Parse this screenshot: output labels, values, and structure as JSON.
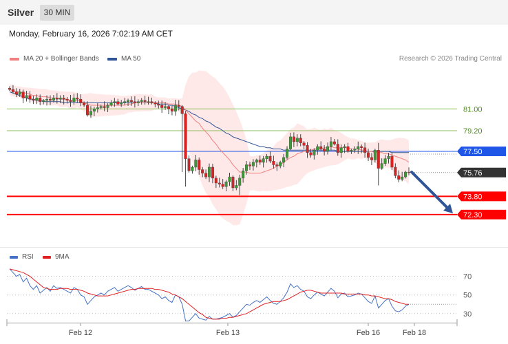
{
  "header": {
    "instrument": "Silver",
    "timeframe": "30 MIN"
  },
  "datetime": "Monday, February 16, 2026 7:02:19 AM CET",
  "legend": {
    "items": [
      {
        "label": "MA 20 + Bollinger Bands",
        "color": "#f08080"
      },
      {
        "label": "MA 50",
        "color": "#2f5597"
      }
    ],
    "copyright": "Research © 2026 Trading Central"
  },
  "rsi_legend": {
    "items": [
      {
        "label": "RSI",
        "color": "#4472c4"
      },
      {
        "label": "9MA",
        "color": "#e02020"
      }
    ]
  },
  "chart_data": [
    {
      "type": "candlestick",
      "x_labels": [
        "Feb 12",
        "Feb 13",
        "Feb 16",
        "Feb 18"
      ],
      "y_range": [
        69.8,
        84.3
      ],
      "last_price": 75.76,
      "levels": [
        {
          "value": 81.0,
          "label": "81.00",
          "color": "#8fbf5a",
          "kind": "resistance"
        },
        {
          "value": 79.2,
          "label": "79.20",
          "color": "#8fbf5a",
          "kind": "resistance"
        },
        {
          "value": 77.5,
          "label": "77.50",
          "color": "#1f56e8",
          "kind": "pivot"
        },
        {
          "value": 73.8,
          "label": "73.80",
          "color": "#ff0000",
          "kind": "support"
        },
        {
          "value": 72.3,
          "label": "72.30",
          "color": "#ff0000",
          "kind": "support"
        }
      ],
      "arrow": {
        "from": 75.8,
        "to": 72.4,
        "color": "#2f5597"
      },
      "close_series": [
        82.6,
        82.4,
        82.2,
        82.4,
        81.9,
        82.1,
        81.8,
        81.7,
        81.9,
        81.6,
        81.7,
        81.8,
        81.7,
        81.9,
        81.8,
        81.9,
        81.8,
        81.7,
        81.6,
        81.9,
        81.8,
        81.5,
        81.3,
        80.5,
        80.8,
        81.0,
        81.1,
        81.2,
        81.1,
        81.3,
        81.5,
        81.6,
        81.4,
        81.5,
        81.6,
        81.7,
        81.6,
        81.5,
        81.6,
        81.7,
        81.6,
        81.6,
        81.5,
        81.4,
        81.3,
        81.1,
        81.2,
        81.0,
        80.8,
        81.3,
        81.2,
        80.6,
        76.9,
        75.9,
        76.2,
        76.8,
        76.0,
        75.7,
        75.4,
        76.2,
        75.3,
        74.9,
        74.8,
        74.6,
        75.0,
        75.4,
        74.5,
        74.7,
        75.3,
        75.9,
        76.4,
        76.3,
        76.6,
        76.8,
        76.6,
        76.9,
        77.1,
        76.7,
        76.4,
        76.3,
        76.6,
        77.0,
        77.7,
        78.7,
        78.3,
        78.6,
        78.2,
        78.0,
        77.4,
        77.2,
        77.6,
        77.9,
        77.7,
        77.5,
        77.9,
        78.3,
        78.1,
        77.4,
        77.8,
        77.9,
        77.5,
        77.6,
        77.7,
        77.9,
        77.8,
        77.4,
        77.0,
        76.8,
        77.6,
        76.1,
        76.5,
        76.9,
        77.1,
        76.2,
        75.5,
        75.2,
        75.4,
        75.8,
        75.76
      ],
      "ma20": [
        82.6,
        82.5,
        82.4,
        82.4,
        82.3,
        82.3,
        82.2,
        82.1,
        82.1,
        82.0,
        82.0,
        82.0,
        81.9,
        81.9,
        81.9,
        81.8,
        81.8,
        81.8,
        81.7,
        81.7,
        81.7,
        81.6,
        81.5,
        81.4,
        81.3,
        81.3,
        81.3,
        81.3,
        81.3,
        81.3,
        81.3,
        81.3,
        81.3,
        81.3,
        81.3,
        81.4,
        81.4,
        81.5,
        81.5,
        81.5,
        81.5,
        81.5,
        81.5,
        81.5,
        81.5,
        81.5,
        81.5,
        81.4,
        81.4,
        81.4,
        81.3,
        81.2,
        80.9,
        80.6,
        80.3,
        80.0,
        79.8,
        79.4,
        79.1,
        78.8,
        78.4,
        78.1,
        77.7,
        77.4,
        77.1,
        76.8,
        76.4,
        76.1,
        75.8,
        75.8,
        75.8,
        75.7,
        75.7,
        75.7,
        75.7,
        75.8,
        75.9,
        76.0,
        76.1,
        76.3,
        76.4,
        76.6,
        76.8,
        77.0,
        77.1,
        77.3,
        77.4,
        77.5,
        77.5,
        77.6,
        77.7,
        77.7,
        77.7,
        77.8,
        77.8,
        77.9,
        77.8,
        77.8,
        77.8,
        77.8,
        77.8,
        77.7,
        77.7,
        77.7,
        77.6,
        77.6,
        77.5,
        77.5,
        77.4,
        77.4,
        77.4,
        77.3,
        77.3,
        77.2,
        77.1,
        77.0,
        76.9,
        76.8,
        76.6
      ],
      "ma50": [
        82.4,
        82.3,
        82.2,
        82.1,
        82.0,
        81.9,
        81.8,
        81.8,
        81.7,
        81.7,
        81.6,
        81.6,
        81.6,
        81.6,
        81.6,
        81.6,
        81.5,
        81.5,
        81.5,
        81.5,
        81.5,
        81.5,
        81.5,
        81.5,
        81.5,
        81.5,
        81.5,
        81.5,
        81.5,
        81.5,
        81.5,
        81.5,
        81.5,
        81.5,
        81.5,
        81.5,
        81.5,
        81.5,
        81.5,
        81.5,
        81.5,
        81.5,
        81.5,
        81.5,
        81.4,
        81.4,
        81.4,
        81.3,
        81.3,
        81.2,
        81.1,
        81.0,
        80.9,
        80.8,
        80.6,
        80.5,
        80.3,
        80.2,
        80.0,
        79.9,
        79.7,
        79.5,
        79.4,
        79.2,
        79.0,
        78.9,
        78.7,
        78.6,
        78.5,
        78.4,
        78.3,
        78.2,
        78.1,
        78.0,
        77.9,
        77.9,
        77.8,
        77.8,
        77.7,
        77.7,
        77.7,
        77.6,
        77.6,
        77.6,
        77.6,
        77.6,
        77.6,
        77.6,
        77.6,
        77.6,
        77.6,
        77.6,
        77.6,
        77.6,
        77.6,
        77.6,
        77.6,
        77.5,
        77.5,
        77.5,
        77.5,
        77.5,
        77.5,
        77.5,
        77.5,
        77.5,
        77.5,
        77.5,
        77.5,
        77.5,
        77.5,
        77.5,
        77.5,
        77.4,
        77.4,
        77.4,
        77.4,
        77.4,
        77.4
      ]
    },
    {
      "type": "line",
      "name": "RSI",
      "y_range": [
        21,
        83
      ],
      "ticks": [
        70,
        50,
        30
      ],
      "series": [
        {
          "name": "RSI",
          "color": "#4472c4",
          "values": [
            78,
            74,
            70,
            72,
            64,
            68,
            60,
            56,
            60,
            52,
            55,
            58,
            54,
            60,
            57,
            58,
            56,
            54,
            52,
            58,
            56,
            50,
            48,
            40,
            44,
            48,
            50,
            52,
            50,
            54,
            56,
            58,
            54,
            56,
            58,
            60,
            58,
            55,
            57,
            59,
            56,
            56,
            54,
            52,
            50,
            46,
            48,
            44,
            42,
            50,
            48,
            40,
            22,
            22,
            26,
            30,
            25,
            24,
            23,
            27,
            24,
            24,
            25,
            26,
            28,
            30,
            26,
            28,
            32,
            36,
            40,
            39,
            42,
            44,
            42,
            45,
            48,
            44,
            41,
            40,
            43,
            47,
            53,
            62,
            58,
            60,
            56,
            54,
            48,
            46,
            50,
            53,
            51,
            49,
            53,
            57,
            54,
            47,
            51,
            52,
            48,
            49,
            50,
            52,
            51,
            47,
            43,
            41,
            49,
            36,
            40,
            44,
            46,
            38,
            33,
            32,
            34,
            38,
            40
          ]
        },
        {
          "name": "9MA",
          "color": "#e02020",
          "values": [
            78,
            77,
            76,
            75,
            74,
            72,
            70,
            67,
            64,
            61,
            58,
            57,
            56,
            56,
            56,
            57,
            57,
            57,
            56,
            56,
            56,
            55,
            54,
            52,
            51,
            50,
            49,
            49,
            49,
            49,
            50,
            51,
            52,
            53,
            54,
            55,
            56,
            56,
            57,
            57,
            57,
            57,
            57,
            56,
            56,
            55,
            54,
            53,
            51,
            50,
            48,
            46,
            43,
            40,
            37,
            34,
            31,
            29,
            26,
            25,
            24,
            24,
            24,
            25,
            25,
            26,
            26,
            27,
            28,
            29,
            30,
            32,
            34,
            36,
            38,
            40,
            41,
            42,
            43,
            43,
            43,
            44,
            45,
            47,
            49,
            51,
            53,
            54,
            55,
            55,
            54,
            53,
            52,
            52,
            52,
            52,
            52,
            52,
            52,
            51,
            51,
            51,
            51,
            51,
            51,
            50,
            50,
            49,
            49,
            48,
            47,
            46,
            46,
            45,
            43,
            42,
            41,
            40,
            40
          ]
        }
      ]
    }
  ]
}
